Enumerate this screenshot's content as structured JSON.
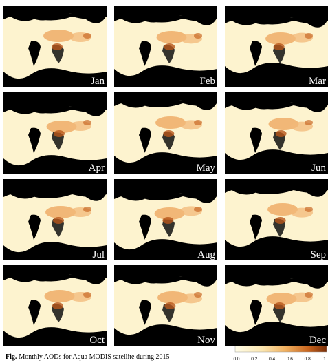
{
  "panels": [
    {
      "label": "Jan"
    },
    {
      "label": "Feb"
    },
    {
      "label": "Mar"
    },
    {
      "label": "Apr"
    },
    {
      "label": "May"
    },
    {
      "label": "Jun"
    },
    {
      "label": "Jul"
    },
    {
      "label": "Aug"
    },
    {
      "label": "Sep"
    },
    {
      "label": "Oct"
    },
    {
      "label": "Nov"
    },
    {
      "label": "Dec"
    }
  ],
  "caption": {
    "prefix": "Fig.",
    "text": "Monthly AODs for Aqua MODIS satellite  during 2015"
  },
  "colorbar": {
    "ticks": [
      "0.0",
      "0.2",
      "0.4",
      "0.6",
      "0.8",
      "1."
    ]
  }
}
